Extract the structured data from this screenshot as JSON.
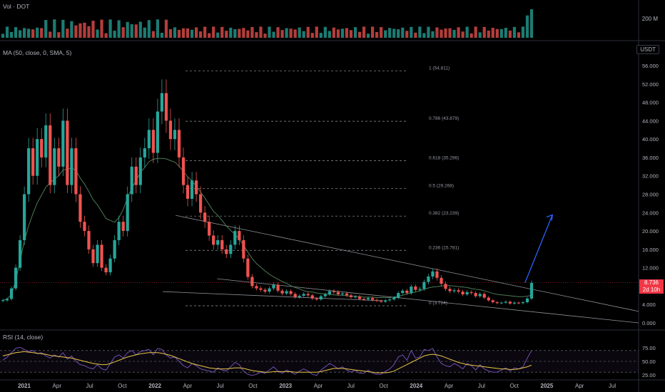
{
  "volume_pane": {
    "label": "Vol · DOT",
    "scale_label": "200 M"
  },
  "ma_label": "MA (50, close, 0, SMA, 5)",
  "currency_badge": "USDT",
  "last_price": {
    "value": "8.736",
    "countdown": "2d 10h",
    "numeric": 8.736
  },
  "rsi_pane": {
    "label": "RSI (14, close)",
    "ticks": [
      "75.00",
      "50.00",
      "25.00"
    ]
  },
  "colors": {
    "up": "#26a69a",
    "down": "#ef5350",
    "ma": "#4c7a54",
    "rsi": "#7e57c2",
    "rsi_ma": "#e8c547",
    "arrow": "#2962ff",
    "price_line": "#f23645"
  },
  "chart_data": {
    "type": "candlestick",
    "title": "",
    "xlabel": "",
    "ylabel": "",
    "x_ticks": [
      "2021",
      "Apr",
      "Jul",
      "Oct",
      "2022",
      "Apr",
      "Jul",
      "Oct",
      "2023",
      "Apr",
      "Jul",
      "Oct",
      "2024",
      "Apr",
      "Jul",
      "Oct",
      "2025",
      "Apr",
      "Jul"
    ],
    "y_ticks": [
      "56.000",
      "52.000",
      "48.000",
      "44.000",
      "40.000",
      "36.000",
      "32.000",
      "28.000",
      "24.000",
      "20.000",
      "16.000",
      "12.000",
      "8.000",
      "4.000",
      "0.000"
    ],
    "ylim": [
      0,
      56
    ],
    "fib_levels": [
      {
        "label": "1 (54.811)",
        "value": 54.811
      },
      {
        "label": "0.786 (43.879)",
        "value": 43.879
      },
      {
        "label": "0.618 (35.296)",
        "value": 35.296
      },
      {
        "label": "0.5 (29.268)",
        "value": 29.268
      },
      {
        "label": "0.382 (23.239)",
        "value": 23.239
      },
      {
        "label": "0.236 (15.781)",
        "value": 15.781
      },
      {
        "label": "0 (3.724)",
        "value": 3.724
      }
    ],
    "price_path": [
      4.9,
      5.2,
      7.5,
      12,
      18,
      28,
      38,
      32,
      40,
      36,
      43,
      30,
      38,
      34,
      44,
      30,
      38,
      28,
      22,
      20,
      16,
      13,
      17,
      12,
      11,
      14,
      18,
      22,
      20,
      28,
      34,
      30,
      36,
      38,
      42,
      37,
      46,
      50,
      44,
      40,
      42,
      36,
      30,
      27,
      31,
      28,
      24,
      22,
      19,
      17,
      18,
      16,
      15,
      17,
      20,
      18,
      14,
      10,
      8,
      7.5,
      7.2,
      6.8,
      7.5,
      8.3,
      7.0,
      6.4,
      6.9,
      6.3,
      5.6,
      5.9,
      6.3,
      6.0,
      5.3,
      5.1,
      5.8,
      6.2,
      6.9,
      6.7,
      6.2,
      6.4,
      6.0,
      5.6,
      5.7,
      5.2,
      5.1,
      5.4,
      5.0,
      4.8,
      4.6,
      4.9,
      5.1,
      5.5,
      6.5,
      7.0,
      6.5,
      7.9,
      7.2,
      7.4,
      8.9,
      10.1,
      11.2,
      9.8,
      8.5,
      7.4,
      6.9,
      7.1,
      6.8,
      6.2,
      6.7,
      6.5,
      5.8,
      6.3,
      5.5,
      4.9,
      4.5,
      4.3,
      4.4,
      4.6,
      4.2,
      4.4,
      4.3,
      4.5,
      5.3,
      8.7
    ],
    "ma50": [
      4.9,
      5.2,
      6.2,
      9.2,
      13.5,
      17.8,
      21.1,
      23.8,
      26.1,
      27.8,
      29.5,
      30.5,
      31.3,
      32.0,
      33.3,
      33.4,
      33.7,
      33.2,
      31.5,
      30.2,
      28.6,
      26.8,
      25.7,
      24.2,
      22.7,
      22.3,
      21.9,
      22.9,
      24.7,
      27.2,
      29.3,
      31.0,
      32.8,
      33.8,
      35.1,
      35.6,
      35.8,
      35.8,
      35.7,
      35.3,
      35.0,
      34.1,
      33.0,
      31.8,
      30.9,
      29.7,
      28.5,
      27.2,
      25.7,
      24.3,
      23.4,
      22.3,
      21.1,
      20.1,
      19.3,
      18.2,
      16.9,
      15.4,
      14.0,
      12.9,
      12.1,
      11.3,
      10.6,
      10.0,
      9.5,
      9.0,
      8.6,
      8.1,
      7.7,
      7.4,
      7.0,
      6.8,
      6.7,
      6.5,
      6.4,
      6.3,
      6.2,
      6.1,
      6.0,
      6.0,
      5.9,
      5.8,
      5.8,
      5.7,
      5.6,
      5.6,
      5.6,
      5.5,
      5.5,
      5.5,
      5.5,
      5.6,
      5.8,
      6.0,
      6.3,
      6.5,
      6.7,
      7.0,
      7.3,
      7.6,
      7.8,
      7.9,
      8.0,
      8.1,
      8.1,
      8.0,
      7.9,
      7.8,
      7.7,
      7.5,
      7.3,
      7.2,
      7.0,
      6.7,
      6.4,
      6.2,
      6.1,
      6.0,
      5.9,
      5.8,
      5.7,
      5.7,
      5.8,
      6.0
    ],
    "rsi": [
      52,
      58,
      66,
      74,
      76,
      72,
      68,
      70,
      64,
      66,
      60,
      56,
      62,
      58,
      66,
      54,
      60,
      50,
      44,
      42,
      38,
      36,
      44,
      36,
      34,
      46,
      58,
      62,
      56,
      66,
      70,
      62,
      68,
      70,
      72,
      62,
      74,
      72,
      62,
      56,
      58,
      50,
      42,
      38,
      46,
      42,
      36,
      34,
      32,
      30,
      38,
      34,
      32,
      40,
      48,
      44,
      32,
      26,
      24,
      26,
      30,
      28,
      34,
      40,
      32,
      28,
      34,
      30,
      26,
      32,
      36,
      32,
      26,
      24,
      34,
      40,
      46,
      42,
      36,
      40,
      34,
      30,
      34,
      28,
      28,
      34,
      28,
      26,
      26,
      32,
      36,
      44,
      58,
      62,
      52,
      70,
      56,
      58,
      72,
      70,
      74,
      58,
      46,
      42,
      40,
      46,
      42,
      36,
      46,
      42,
      34,
      44,
      36,
      32,
      30,
      30,
      34,
      38,
      32,
      38,
      36,
      40,
      56,
      70
    ],
    "rsi_ma": [
      60,
      62,
      64,
      66,
      67,
      68,
      67,
      66,
      65,
      64,
      63,
      61,
      60,
      59,
      58,
      57,
      56,
      54,
      52,
      50,
      48,
      46,
      45,
      44,
      44,
      46,
      49,
      52,
      55,
      58,
      60,
      62,
      64,
      65,
      66,
      66,
      66,
      65,
      63,
      61,
      58,
      55,
      52,
      49,
      46,
      44,
      42,
      40,
      38,
      37,
      36,
      36,
      36,
      37,
      38,
      38,
      37,
      35,
      33,
      32,
      31,
      30,
      30,
      31,
      31,
      31,
      31,
      31,
      30,
      30,
      30,
      30,
      30,
      30,
      31,
      33,
      35,
      37,
      37,
      37,
      36,
      35,
      34,
      33,
      32,
      31,
      30,
      29,
      29,
      29,
      30,
      32,
      36,
      40,
      44,
      48,
      52,
      56,
      60,
      62,
      63,
      62,
      60,
      57,
      54,
      51,
      48,
      46,
      44,
      43,
      42,
      41,
      40,
      39,
      38,
      37,
      36,
      36,
      35,
      35,
      36,
      38,
      40,
      43
    ],
    "trendlines": [
      {
        "name": "upper",
        "from": [
          0.275,
          23.4
        ],
        "to": [
          1.0,
          2.5
        ]
      },
      {
        "name": "lower",
        "from": [
          0.34,
          9.6
        ],
        "to": [
          1.0,
          0.0
        ]
      },
      {
        "name": "mid",
        "from": [
          0.255,
          6.8
        ],
        "to": [
          0.6,
          4.8
        ]
      }
    ],
    "projection_arrow": {
      "from": [
        0.822,
        8.7
      ],
      "to": [
        0.865,
        23.5
      ]
    }
  }
}
